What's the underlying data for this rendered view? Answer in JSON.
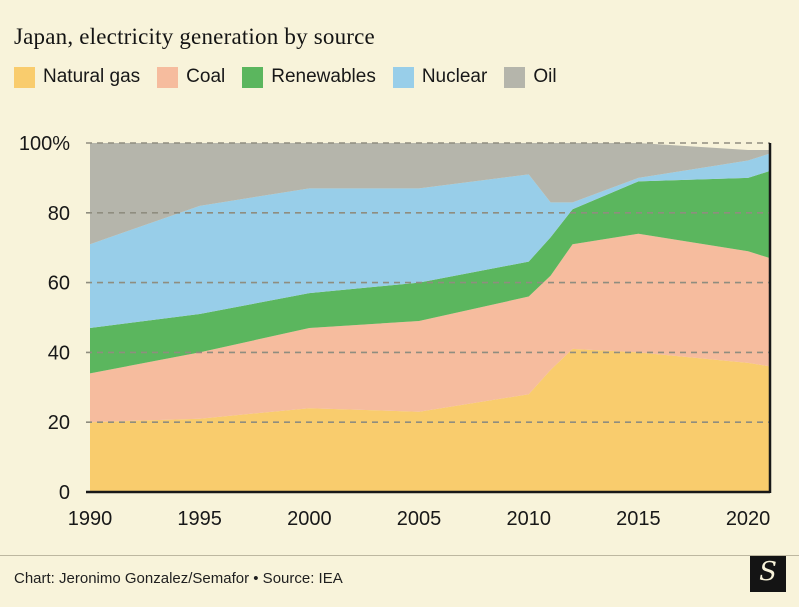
{
  "header": {
    "title": "Japan, electricity generation by source"
  },
  "footer": {
    "credit": "Chart: Jeronimo Gonzalez/Semafor • Source: IEA",
    "logo_glyph": "S"
  },
  "colors": {
    "background": "#f8f3da",
    "text": "#181818",
    "grid": "#8f8d7f",
    "axis": "#181818"
  },
  "chart_data": {
    "type": "area",
    "stacked": true,
    "unit": "%",
    "title": "Japan, electricity generation by source",
    "xlabel": "",
    "ylabel": "",
    "xlim": [
      1990,
      2021
    ],
    "ylim": [
      0,
      100
    ],
    "grid": "dashed-horizontal",
    "legend_position": "top",
    "x": [
      1990,
      1995,
      2000,
      2005,
      2010,
      2011,
      2012,
      2015,
      2020,
      2021
    ],
    "series": [
      {
        "id": "natural-gas",
        "name": "Natural gas",
        "color": "#f9cc6d",
        "values": [
          20,
          21,
          24,
          23,
          28,
          35,
          41,
          40,
          37,
          36
        ]
      },
      {
        "id": "coal",
        "name": "Coal",
        "color": "#f6bc9e",
        "values": [
          14,
          19,
          23,
          26,
          28,
          27,
          30,
          34,
          32,
          31
        ]
      },
      {
        "id": "renewables",
        "name": "Renewables",
        "color": "#5bb65e",
        "values": [
          13,
          11,
          10,
          11,
          10,
          11,
          10,
          15,
          21,
          25
        ]
      },
      {
        "id": "nuclear",
        "name": "Nuclear",
        "color": "#98cee9",
        "values": [
          24,
          31,
          30,
          27,
          25,
          10,
          2,
          1,
          5,
          5
        ]
      },
      {
        "id": "oil",
        "name": "Oil",
        "color": "#b5b5ab",
        "values": [
          29,
          18,
          13,
          13,
          9,
          17,
          17,
          10,
          3,
          1
        ]
      }
    ],
    "x_ticks": [
      1990,
      1995,
      2000,
      2005,
      2010,
      2015,
      2020
    ],
    "y_ticks": [
      {
        "value": 0,
        "label": "0"
      },
      {
        "value": 20,
        "label": "20"
      },
      {
        "value": 40,
        "label": "40"
      },
      {
        "value": 60,
        "label": "60"
      },
      {
        "value": 80,
        "label": "80"
      },
      {
        "value": 100,
        "label": "100%"
      }
    ]
  }
}
